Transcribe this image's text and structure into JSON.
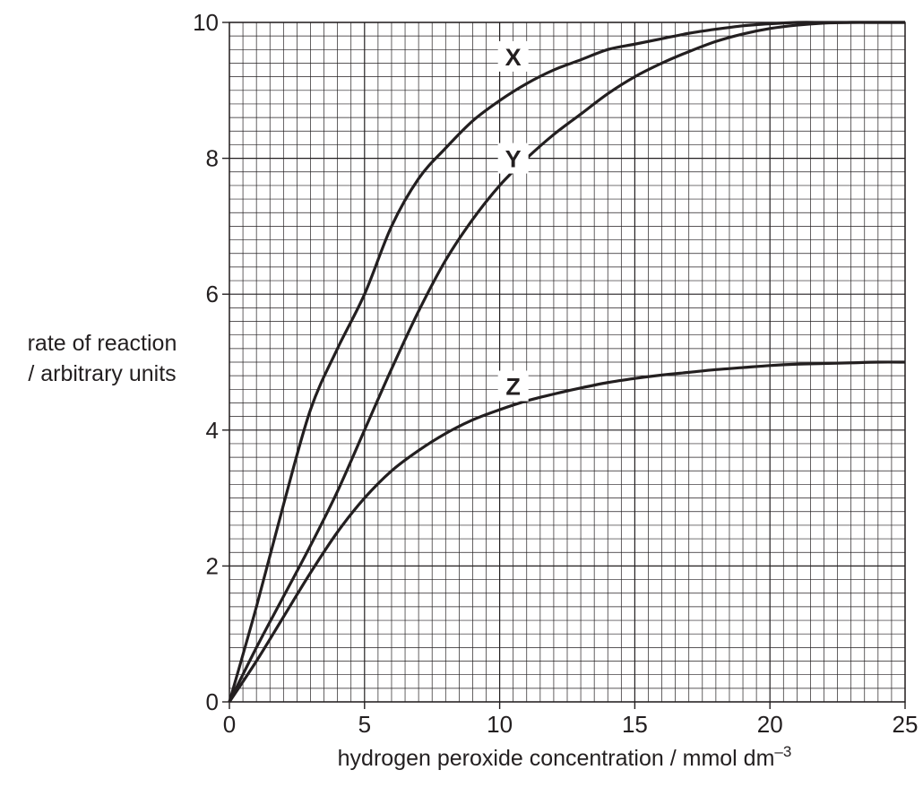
{
  "chart_data": {
    "type": "line",
    "ylabel_lines": [
      "rate of reaction",
      "/ arbitrary units"
    ],
    "xlabel": "hydrogen peroxide concentration / mmol dm",
    "xlabel_superscript": "–3",
    "xlim": [
      0,
      25
    ],
    "ylim": [
      0,
      10
    ],
    "x_ticks": [
      0,
      5,
      10,
      15,
      20,
      25
    ],
    "y_ticks": [
      0,
      2,
      4,
      6,
      8,
      10
    ],
    "x_minor_step": 0.5,
    "y_minor_step": 0.2,
    "grid": true,
    "series": [
      {
        "name": "X",
        "label_at": [
          10.5,
          9.5
        ],
        "points": [
          [
            0,
            0
          ],
          [
            1,
            1.4
          ],
          [
            2,
            2.9
          ],
          [
            3,
            4.3
          ],
          [
            4,
            5.2
          ],
          [
            5,
            6.0
          ],
          [
            6,
            7.0
          ],
          [
            7,
            7.7
          ],
          [
            8,
            8.15
          ],
          [
            9,
            8.55
          ],
          [
            10,
            8.85
          ],
          [
            11,
            9.1
          ],
          [
            12,
            9.3
          ],
          [
            13,
            9.45
          ],
          [
            14,
            9.6
          ],
          [
            15,
            9.68
          ],
          [
            16,
            9.76
          ],
          [
            17,
            9.84
          ],
          [
            18,
            9.9
          ],
          [
            19,
            9.95
          ],
          [
            20,
            9.98
          ],
          [
            21,
            10.0
          ],
          [
            22,
            10.0
          ],
          [
            23,
            10.0
          ],
          [
            24,
            10.0
          ],
          [
            25,
            10.0
          ]
        ]
      },
      {
        "name": "Y",
        "label_at": [
          10.5,
          8.0
        ],
        "points": [
          [
            0,
            0
          ],
          [
            1,
            0.8
          ],
          [
            2,
            1.55
          ],
          [
            3,
            2.3
          ],
          [
            4,
            3.1
          ],
          [
            5,
            4.0
          ],
          [
            6,
            4.9
          ],
          [
            7,
            5.75
          ],
          [
            8,
            6.5
          ],
          [
            9,
            7.1
          ],
          [
            10,
            7.6
          ],
          [
            11,
            8.0
          ],
          [
            12,
            8.35
          ],
          [
            13,
            8.65
          ],
          [
            14,
            8.95
          ],
          [
            15,
            9.2
          ],
          [
            16,
            9.4
          ],
          [
            17,
            9.57
          ],
          [
            18,
            9.72
          ],
          [
            19,
            9.83
          ],
          [
            20,
            9.91
          ],
          [
            21,
            9.96
          ],
          [
            22,
            9.99
          ],
          [
            23,
            10.0
          ],
          [
            24,
            10.0
          ],
          [
            25,
            10.0
          ]
        ]
      },
      {
        "name": "Z",
        "label_at": [
          10.5,
          4.65
        ],
        "points": [
          [
            0,
            0
          ],
          [
            1,
            0.6
          ],
          [
            2,
            1.25
          ],
          [
            3,
            1.9
          ],
          [
            4,
            2.5
          ],
          [
            5,
            3.0
          ],
          [
            6,
            3.4
          ],
          [
            7,
            3.7
          ],
          [
            8,
            3.95
          ],
          [
            9,
            4.15
          ],
          [
            10,
            4.3
          ],
          [
            11,
            4.43
          ],
          [
            12,
            4.53
          ],
          [
            13,
            4.62
          ],
          [
            14,
            4.7
          ],
          [
            15,
            4.76
          ],
          [
            16,
            4.81
          ],
          [
            17,
            4.85
          ],
          [
            18,
            4.89
          ],
          [
            19,
            4.92
          ],
          [
            20,
            4.95
          ],
          [
            21,
            4.97
          ],
          [
            22,
            4.98
          ],
          [
            23,
            4.99
          ],
          [
            24,
            5.0
          ],
          [
            25,
            5.0
          ]
        ]
      }
    ]
  }
}
